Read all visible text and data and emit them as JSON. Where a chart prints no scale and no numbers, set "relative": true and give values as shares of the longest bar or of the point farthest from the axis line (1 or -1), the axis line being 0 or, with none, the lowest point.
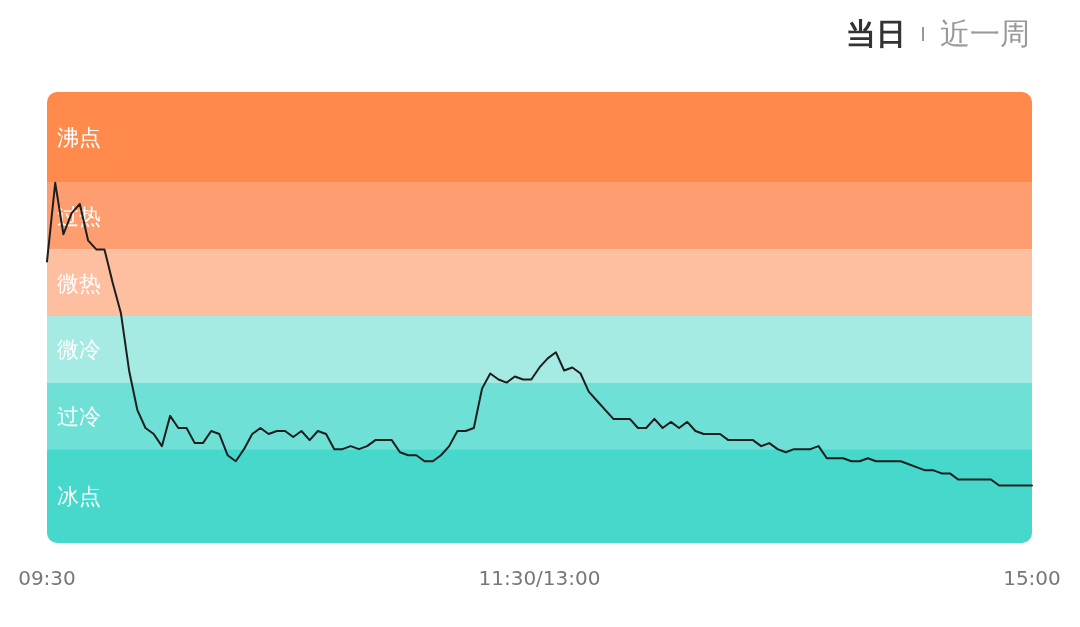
{
  "chart_data": {
    "type": "line",
    "relative": true,
    "annotations": [
      "当日",
      "近一周"
    ],
    "categories": [
      "09:30",
      null,
      null,
      null,
      null,
      null,
      null,
      null,
      null,
      null,
      null,
      null,
      null,
      null,
      null,
      null,
      null,
      null,
      null,
      null,
      null,
      null,
      null,
      null,
      null,
      null,
      null,
      null,
      null,
      null,
      null,
      null,
      null,
      null,
      null,
      null,
      null,
      null,
      null,
      null,
      null,
      null,
      null,
      null,
      null,
      null,
      null,
      null,
      null,
      null,
      null,
      null,
      null,
      null,
      null,
      null,
      null,
      null,
      null,
      null,
      "11:30/13:00",
      null,
      null,
      null,
      null,
      null,
      null,
      null,
      null,
      null,
      null,
      null,
      null,
      null,
      null,
      null,
      null,
      null,
      null,
      null,
      null,
      null,
      null,
      null,
      null,
      null,
      null,
      null,
      null,
      null,
      null,
      null,
      null,
      null,
      null,
      null,
      null,
      null,
      null,
      null,
      null,
      null,
      null,
      null,
      null,
      null,
      null,
      null,
      null,
      null,
      null,
      null,
      null,
      null,
      null,
      null,
      null,
      null,
      null,
      null,
      "15:00"
    ],
    "series": [
      {
        "color": "#1e1e1e",
        "values": [
          0.74,
          1.0,
          0.83,
          0.9,
          0.93,
          0.81,
          0.78,
          0.78,
          0.67,
          0.57,
          0.38,
          0.25,
          0.19,
          0.17,
          0.13,
          0.23,
          0.19,
          0.19,
          0.14,
          0.14,
          0.18,
          0.17,
          0.1,
          0.08,
          0.12,
          0.17,
          0.19,
          0.17,
          0.18,
          0.18,
          0.16,
          0.18,
          0.15,
          0.18,
          0.17,
          0.12,
          0.12,
          0.13,
          0.12,
          0.13,
          0.15,
          0.15,
          0.15,
          0.11,
          0.1,
          0.1,
          0.08,
          0.08,
          0.1,
          0.13,
          0.18,
          0.18,
          0.19,
          0.32,
          0.37,
          0.35,
          0.34,
          0.36,
          0.35,
          0.35,
          0.39,
          0.42,
          0.44,
          0.38,
          0.39,
          0.37,
          0.31,
          0.28,
          0.25,
          0.22,
          0.22,
          0.22,
          0.19,
          0.19,
          0.22,
          0.19,
          0.21,
          0.19,
          0.21,
          0.18,
          0.17,
          0.17,
          0.17,
          0.15,
          0.15,
          0.15,
          0.15,
          0.13,
          0.14,
          0.12,
          0.11,
          0.12,
          0.12,
          0.12,
          0.13,
          0.09,
          0.09,
          0.09,
          0.08,
          0.08,
          0.09,
          0.08,
          0.08,
          0.08,
          0.08,
          0.07,
          0.06,
          0.05,
          0.05,
          0.04,
          0.04,
          0.02,
          0.02,
          0.02,
          0.02,
          0.02,
          0,
          0,
          0,
          0,
          0
        ]
      }
    ],
    "bands": [
      {
        "axis": "y",
        "from": 1.0,
        "to": 1.3,
        "label": "沸点",
        "color": "#ff8a4c"
      },
      {
        "axis": "y",
        "from": 0.78,
        "to": 1.0,
        "label": "过热",
        "color": "#fe9e70"
      },
      {
        "axis": "y",
        "from": 0.56,
        "to": 0.78,
        "label": "微热",
        "color": "#fdbfa0"
      },
      {
        "axis": "y",
        "from": 0.34,
        "to": 0.56,
        "label": "微冷",
        "color": "#a6ebe3"
      },
      {
        "axis": "y",
        "from": 0.12,
        "to": 0.34,
        "label": "过冷",
        "color": "#6fe0d5"
      },
      {
        "axis": "y",
        "from": -0.19,
        "to": 0.12,
        "label": "冰点",
        "color": "#45d8cb"
      }
    ]
  }
}
